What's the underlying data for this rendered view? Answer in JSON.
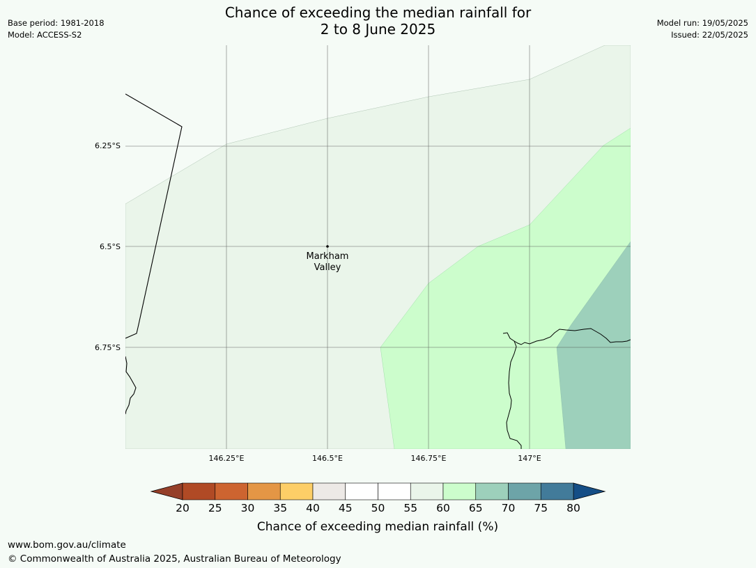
{
  "header": {
    "title_line1": "Chance of exceeding the median rainfall for",
    "title_line2": "2 to 8 June 2025",
    "base_period": "Base period: 1981-2018",
    "model": "Model: ACCESS-S2",
    "model_run": "Model run: 19/05/2025",
    "issued": "Issued: 22/05/2025"
  },
  "map": {
    "lat_labels": [
      "6.25°S",
      "6.5°S",
      "6.75°S"
    ],
    "lon_labels": [
      "146.25°E",
      "146.5°E",
      "146.75°E",
      "147°E"
    ],
    "place": {
      "line1": "Markham",
      "line2": "Valley"
    },
    "colors": {
      "band_55_60": "#eaf5ea",
      "band_60_65": "#ccfdcc",
      "band_65_70": "#9dd0bb"
    }
  },
  "colorbar": {
    "label": "Chance of exceeding median rainfall (%)",
    "ticks": [
      "20",
      "25",
      "30",
      "35",
      "40",
      "45",
      "50",
      "55",
      "60",
      "65",
      "70",
      "75",
      "80"
    ],
    "low_extend_color": "#953f29",
    "high_extend_color": "#154e86",
    "colors": [
      "#b04a25",
      "#cd6430",
      "#e49645",
      "#fdce67",
      "#ede9e6",
      "#ffffff",
      "#ffffff",
      "#eaf5ea",
      "#ccfdcc",
      "#9dd0bb",
      "#6da4a8",
      "#427b9a"
    ]
  },
  "footer": {
    "url": "www.bom.gov.au/climate",
    "copyright": "© Commonwealth of Australia 2025, Australian Bureau of Meteorology"
  }
}
